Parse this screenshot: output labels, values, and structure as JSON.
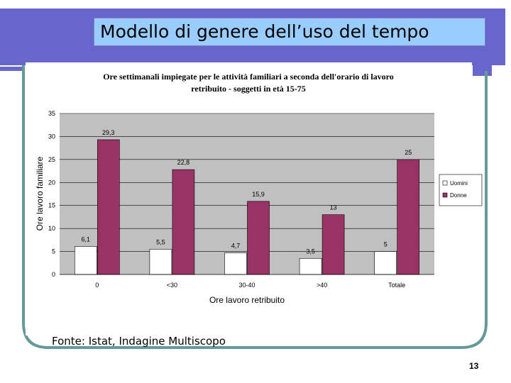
{
  "slide": {
    "title": "Modello di genere dell’uso del tempo",
    "source": "Fonte: Istat, Indagine Multiscopo",
    "page_number": "13"
  },
  "colors": {
    "title_bg": "#99ccff",
    "header_band": "#6666cc",
    "frame": "#669999",
    "plot_bg": "#c0c0c0",
    "uomini": "#ffffff",
    "donne": "#993366"
  },
  "chart_data": {
    "type": "bar",
    "title_line1": "Ore settimanali impiegate per le attività familiari a seconda dell'orario di lavoro",
    "title_line2": "retribuito - soggetti in età 15-75",
    "xlabel": "Ore lavoro retribuito",
    "ylabel": "Ore lavoro familiare",
    "ylim": [
      0,
      35
    ],
    "yticks": [
      0,
      5,
      10,
      15,
      20,
      25,
      30,
      35
    ],
    "grid": true,
    "legend_position": "right",
    "categories": [
      "0",
      "<30",
      "30-40",
      ">40",
      "Totale"
    ],
    "series": [
      {
        "name": "Uomini",
        "values": [
          6.1,
          5.5,
          4.7,
          3.5,
          5
        ],
        "labels": [
          "6,1",
          "5,5",
          "4,7",
          "3,5",
          "5"
        ]
      },
      {
        "name": "Donne",
        "values": [
          29.3,
          22.8,
          15.9,
          13,
          25
        ],
        "labels": [
          "29,3",
          "22,8",
          "15,9",
          "13",
          "25"
        ]
      }
    ]
  }
}
